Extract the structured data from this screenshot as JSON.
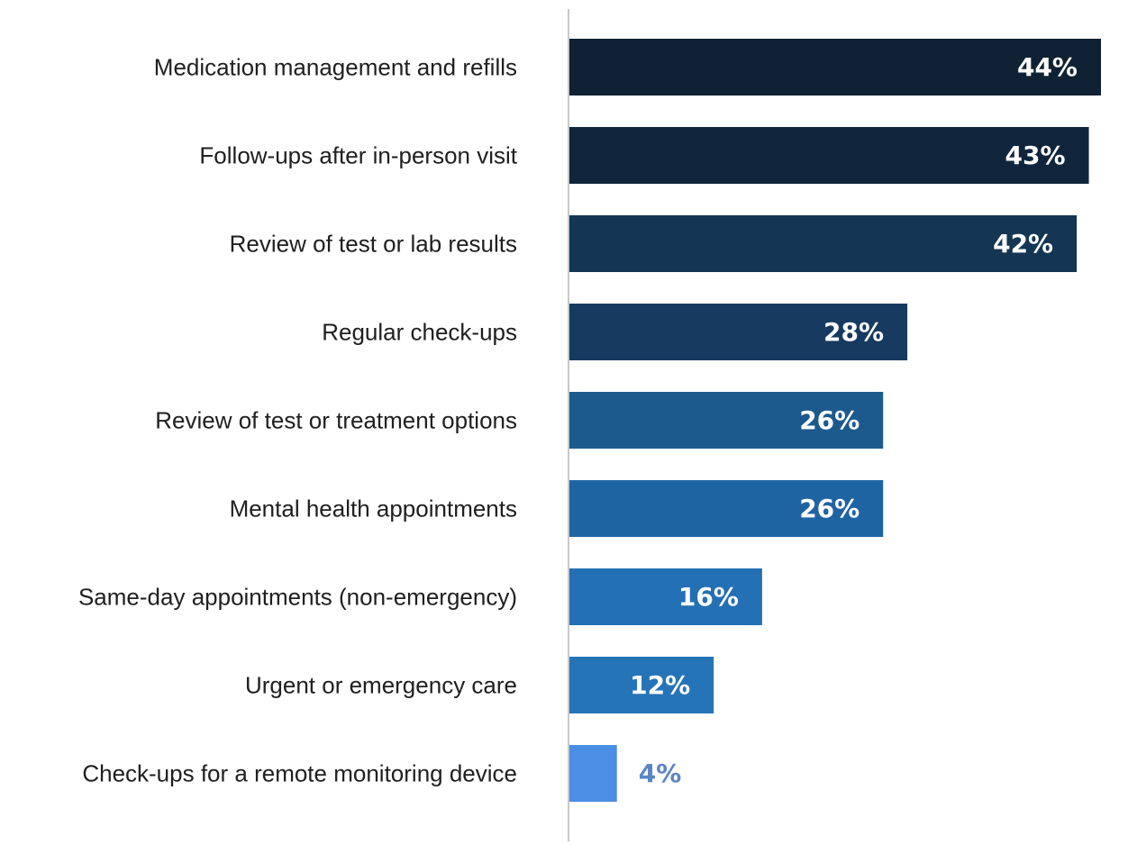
{
  "chart_data": {
    "type": "bar",
    "orientation": "horizontal",
    "categories": [
      "Medication management and refills",
      "Follow-ups after in-person visit",
      "Review of test or lab results",
      "Regular check-ups",
      "Review of test or treatment options",
      "Mental health appointments",
      "Same-day appointments (non-emergency)",
      "Urgent or emergency care",
      "Check-ups for a remote monitoring device"
    ],
    "values": [
      44,
      43,
      42,
      28,
      26,
      26,
      16,
      12,
      4
    ],
    "value_labels": [
      "44%",
      "43%",
      "42%",
      "28%",
      "26%",
      "26%",
      "16%",
      "12%",
      "4%"
    ],
    "unit": "%",
    "xlim": [
      0,
      44
    ],
    "grid": false,
    "legend": "none",
    "colors": [
      "#0f2133",
      "#10253c",
      "#143553",
      "#163a60",
      "#1c5a8e",
      "#1f64a2",
      "#2470b4",
      "#2674b8",
      "#4a8ee6"
    ],
    "value_label_colors": [
      "#ffffff",
      "#ffffff",
      "#ffffff",
      "#ffffff",
      "#ffffff",
      "#ffffff",
      "#ffffff",
      "#ffffff",
      "#5b85c6"
    ],
    "axis_color": "#c8c8c8"
  }
}
